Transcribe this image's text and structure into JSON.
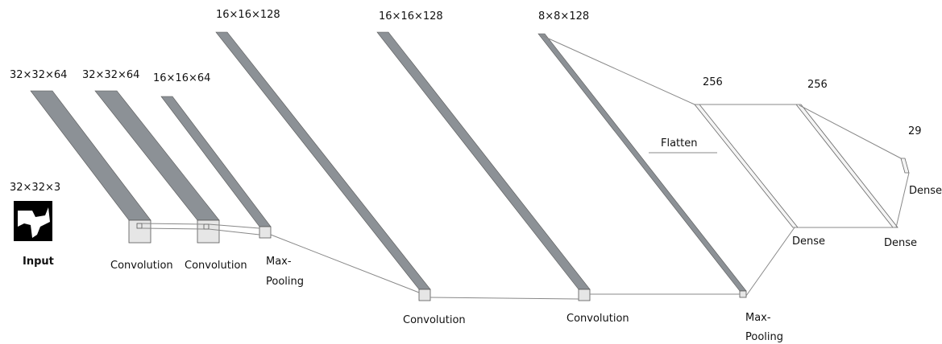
{
  "input": {
    "dims": "32×32×3",
    "label": "Input"
  },
  "layers": [
    {
      "dims": "32×32×64",
      "label": [
        "Convolution"
      ]
    },
    {
      "dims": "32×32×64",
      "label": [
        "Convolution"
      ]
    },
    {
      "dims": "16×16×64",
      "label": [
        "Max-",
        "Pooling"
      ]
    },
    {
      "dims": "16×16×128",
      "label": [
        "Convolution"
      ]
    },
    {
      "dims": "16×16×128",
      "label": [
        "Convolution"
      ]
    },
    {
      "dims": "8×8×128",
      "label": [
        "Max-",
        "Pooling"
      ]
    }
  ],
  "flatten": "Flatten",
  "dense": [
    {
      "units": "256",
      "label": "Dense"
    },
    {
      "units": "256",
      "label": "Dense"
    },
    {
      "units": "29",
      "label": "Dense"
    }
  ]
}
